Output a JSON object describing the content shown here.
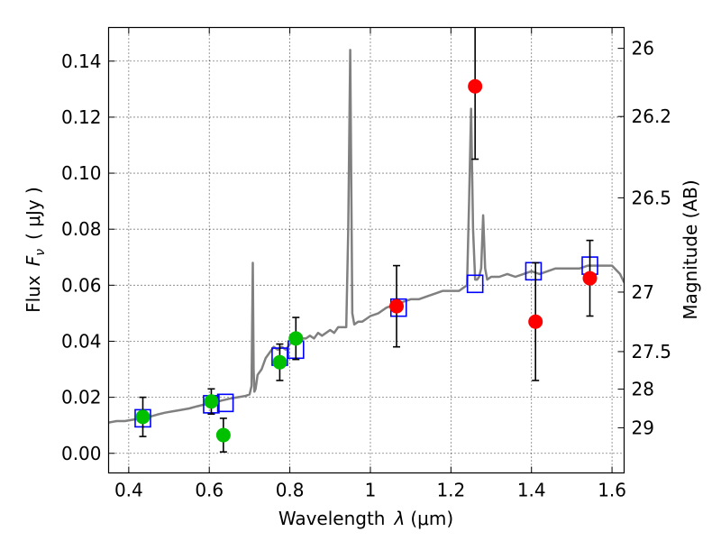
{
  "chart_data": {
    "type": "scatter",
    "xlabel": "Wavelength",
    "xlabel_symbol": "λ",
    "xlabel_unit": "(μm)",
    "ylabel": "Flux",
    "ylabel_symbol": "F",
    "ylabel_subscript": "ν",
    "ylabel_unit": "( μJy )",
    "y2label": "Magnitude (AB)",
    "xlim": [
      0.35,
      1.63
    ],
    "ylim": [
      -0.007,
      0.152
    ],
    "grid": true,
    "x_ticks": [
      0.4,
      0.6,
      0.8,
      1.0,
      1.2,
      1.4,
      1.6
    ],
    "x_tick_labels": [
      "0.4",
      "0.6",
      "0.8",
      "1",
      "1.2",
      "1.4",
      "1.6"
    ],
    "y_ticks": [
      0.0,
      0.02,
      0.04,
      0.06,
      0.08,
      0.1,
      0.12,
      0.14
    ],
    "y_tick_labels": [
      "0.00",
      "0.02",
      "0.04",
      "0.06",
      "0.08",
      "0.10",
      "0.12",
      "0.14"
    ],
    "y2_ticks": [
      26,
      26.2,
      26.5,
      27,
      27.5,
      28,
      29
    ],
    "y2_tick_labels": [
      "26",
      "26.2",
      "26.5",
      "27",
      "27.5",
      "28",
      "29"
    ],
    "colors": {
      "spectrum": "#808080",
      "model_box": "#0000ff",
      "green_points": "#00c000",
      "red_points": "#ff0000",
      "errorbar": "#000000",
      "grid": "#000000"
    },
    "series": [
      {
        "name": "model spectrum",
        "kind": "line",
        "x": [
          0.35,
          0.37,
          0.39,
          0.41,
          0.43,
          0.45,
          0.47,
          0.49,
          0.51,
          0.53,
          0.55,
          0.57,
          0.59,
          0.61,
          0.63,
          0.65,
          0.67,
          0.69,
          0.7,
          0.705,
          0.708,
          0.71,
          0.712,
          0.715,
          0.72,
          0.73,
          0.74,
          0.75,
          0.76,
          0.77,
          0.78,
          0.79,
          0.8,
          0.81,
          0.82,
          0.83,
          0.84,
          0.85,
          0.86,
          0.87,
          0.88,
          0.89,
          0.9,
          0.91,
          0.92,
          0.93,
          0.94,
          0.945,
          0.95,
          0.955,
          0.96,
          0.97,
          0.98,
          0.99,
          1.0,
          1.02,
          1.04,
          1.06,
          1.08,
          1.1,
          1.12,
          1.14,
          1.16,
          1.18,
          1.2,
          1.22,
          1.24,
          1.245,
          1.25,
          1.255,
          1.26,
          1.265,
          1.27,
          1.275,
          1.28,
          1.285,
          1.29,
          1.3,
          1.32,
          1.34,
          1.36,
          1.38,
          1.4,
          1.42,
          1.44,
          1.46,
          1.48,
          1.5,
          1.52,
          1.54,
          1.56,
          1.58,
          1.6,
          1.62,
          1.63
        ],
        "y": [
          0.011,
          0.0115,
          0.0115,
          0.012,
          0.0125,
          0.013,
          0.0138,
          0.0145,
          0.015,
          0.0155,
          0.016,
          0.0168,
          0.0175,
          0.018,
          0.0188,
          0.0195,
          0.02,
          0.0205,
          0.021,
          0.024,
          0.068,
          0.03,
          0.022,
          0.023,
          0.028,
          0.03,
          0.034,
          0.036,
          0.038,
          0.037,
          0.038,
          0.037,
          0.039,
          0.04,
          0.039,
          0.041,
          0.041,
          0.042,
          0.041,
          0.043,
          0.042,
          0.043,
          0.044,
          0.043,
          0.045,
          0.045,
          0.045,
          0.08,
          0.144,
          0.05,
          0.046,
          0.047,
          0.047,
          0.048,
          0.049,
          0.05,
          0.052,
          0.053,
          0.054,
          0.055,
          0.055,
          0.056,
          0.057,
          0.058,
          0.058,
          0.058,
          0.06,
          0.09,
          0.123,
          0.08,
          0.062,
          0.062,
          0.063,
          0.066,
          0.085,
          0.066,
          0.062,
          0.063,
          0.063,
          0.064,
          0.063,
          0.064,
          0.065,
          0.064,
          0.065,
          0.066,
          0.066,
          0.066,
          0.066,
          0.067,
          0.067,
          0.067,
          0.067,
          0.064,
          0.061
        ]
      },
      {
        "name": "model photometry",
        "kind": "box",
        "x": [
          0.435,
          0.605,
          0.64,
          0.775,
          0.815,
          1.07,
          1.26,
          1.405,
          1.545
        ],
        "y": [
          0.0125,
          0.0175,
          0.018,
          0.0345,
          0.037,
          0.052,
          0.0605,
          0.065,
          0.067
        ]
      },
      {
        "name": "observed (green)",
        "kind": "point",
        "x": [
          0.435,
          0.605,
          0.635,
          0.775,
          0.815
        ],
        "y": [
          0.013,
          0.0185,
          0.0065,
          0.0325,
          0.041
        ],
        "err": [
          0.007,
          0.0045,
          0.006,
          0.0065,
          0.0075
        ]
      },
      {
        "name": "observed (red)",
        "kind": "point",
        "x": [
          1.065,
          1.26,
          1.41,
          1.545
        ],
        "y": [
          0.0525,
          0.131,
          0.047,
          0.0625
        ],
        "err": [
          0.0145,
          0.026,
          0.021,
          0.0135
        ]
      }
    ]
  }
}
